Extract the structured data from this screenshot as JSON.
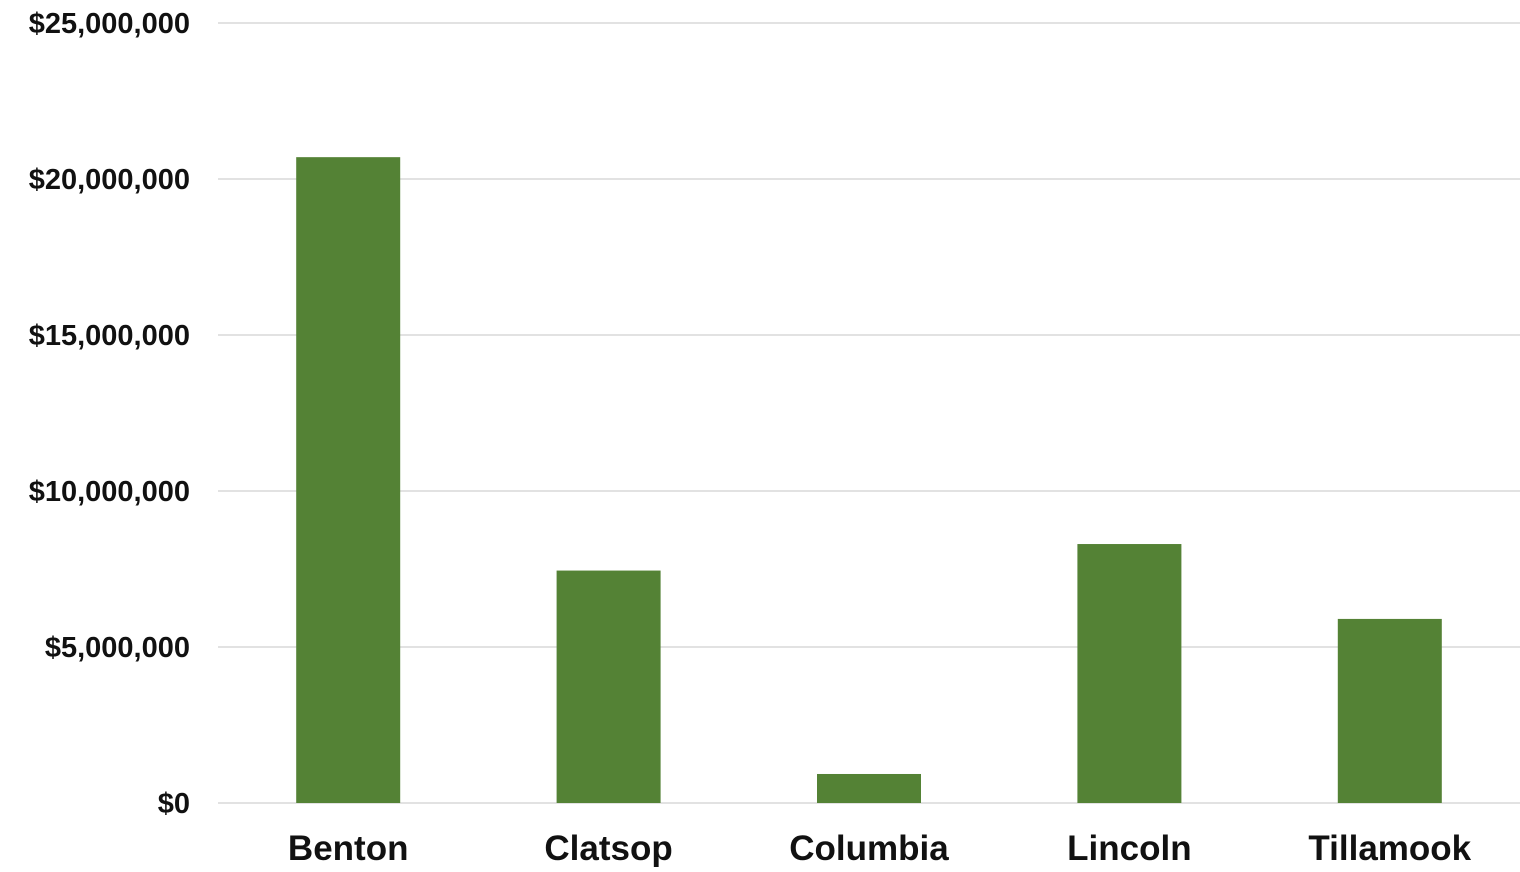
{
  "chart_data": {
    "type": "bar",
    "title": "",
    "xlabel": "",
    "ylabel": "",
    "categories": [
      "Benton",
      "Clatsop",
      "Columbia",
      "Lincoln",
      "Tillamook"
    ],
    "values": [
      20700000,
      7450000,
      930000,
      8300000,
      5900000
    ],
    "ylim": [
      0,
      25000000
    ],
    "yticks": [
      0,
      5000000,
      10000000,
      15000000,
      20000000,
      25000000
    ],
    "ytick_labels": [
      "$0",
      "$5,000,000",
      "$10,000,000",
      "$15,000,000",
      "$20,000,000",
      "$25,000,000"
    ],
    "grid": true,
    "legend": "none",
    "colors": {
      "bar": "#548235",
      "grid": "#d9d9d9",
      "text": "#111111"
    }
  }
}
